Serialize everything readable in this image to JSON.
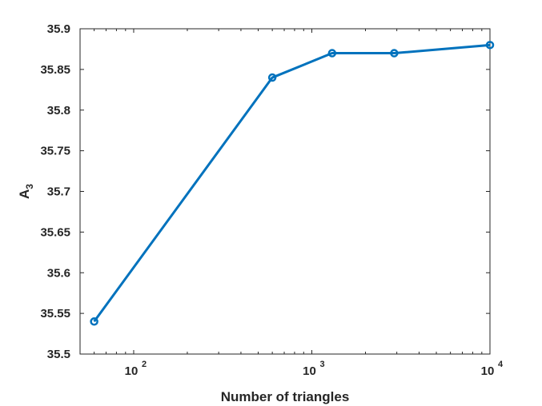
{
  "chart_data": {
    "type": "line",
    "title": "",
    "xlabel": "Number of triangles",
    "ylabel": {
      "main": "A",
      "subscript": "3"
    },
    "xscale": "log",
    "xlim": [
      50,
      10000
    ],
    "ylim": [
      35.5,
      35.9
    ],
    "grid": false,
    "color": "#0072BD",
    "marker": "circle",
    "series": [
      {
        "x": [
          60,
          600,
          1300,
          2900,
          10000
        ],
        "y": [
          35.54,
          35.84,
          35.87,
          35.87,
          35.88
        ]
      }
    ],
    "yticks": [
      {
        "value": 35.5,
        "label": "35.5"
      },
      {
        "value": 35.55,
        "label": "35.55"
      },
      {
        "value": 35.6,
        "label": "35.6"
      },
      {
        "value": 35.65,
        "label": "35.65"
      },
      {
        "value": 35.7,
        "label": "35.7"
      },
      {
        "value": 35.75,
        "label": "35.75"
      },
      {
        "value": 35.8,
        "label": "35.8"
      },
      {
        "value": 35.85,
        "label": "35.85"
      },
      {
        "value": 35.9,
        "label": "35.9"
      }
    ],
    "xticks": [
      {
        "value": 100,
        "base": "10",
        "exp": "2"
      },
      {
        "value": 1000,
        "base": "10",
        "exp": "3"
      },
      {
        "value": 10000,
        "base": "10",
        "exp": "4"
      }
    ]
  }
}
